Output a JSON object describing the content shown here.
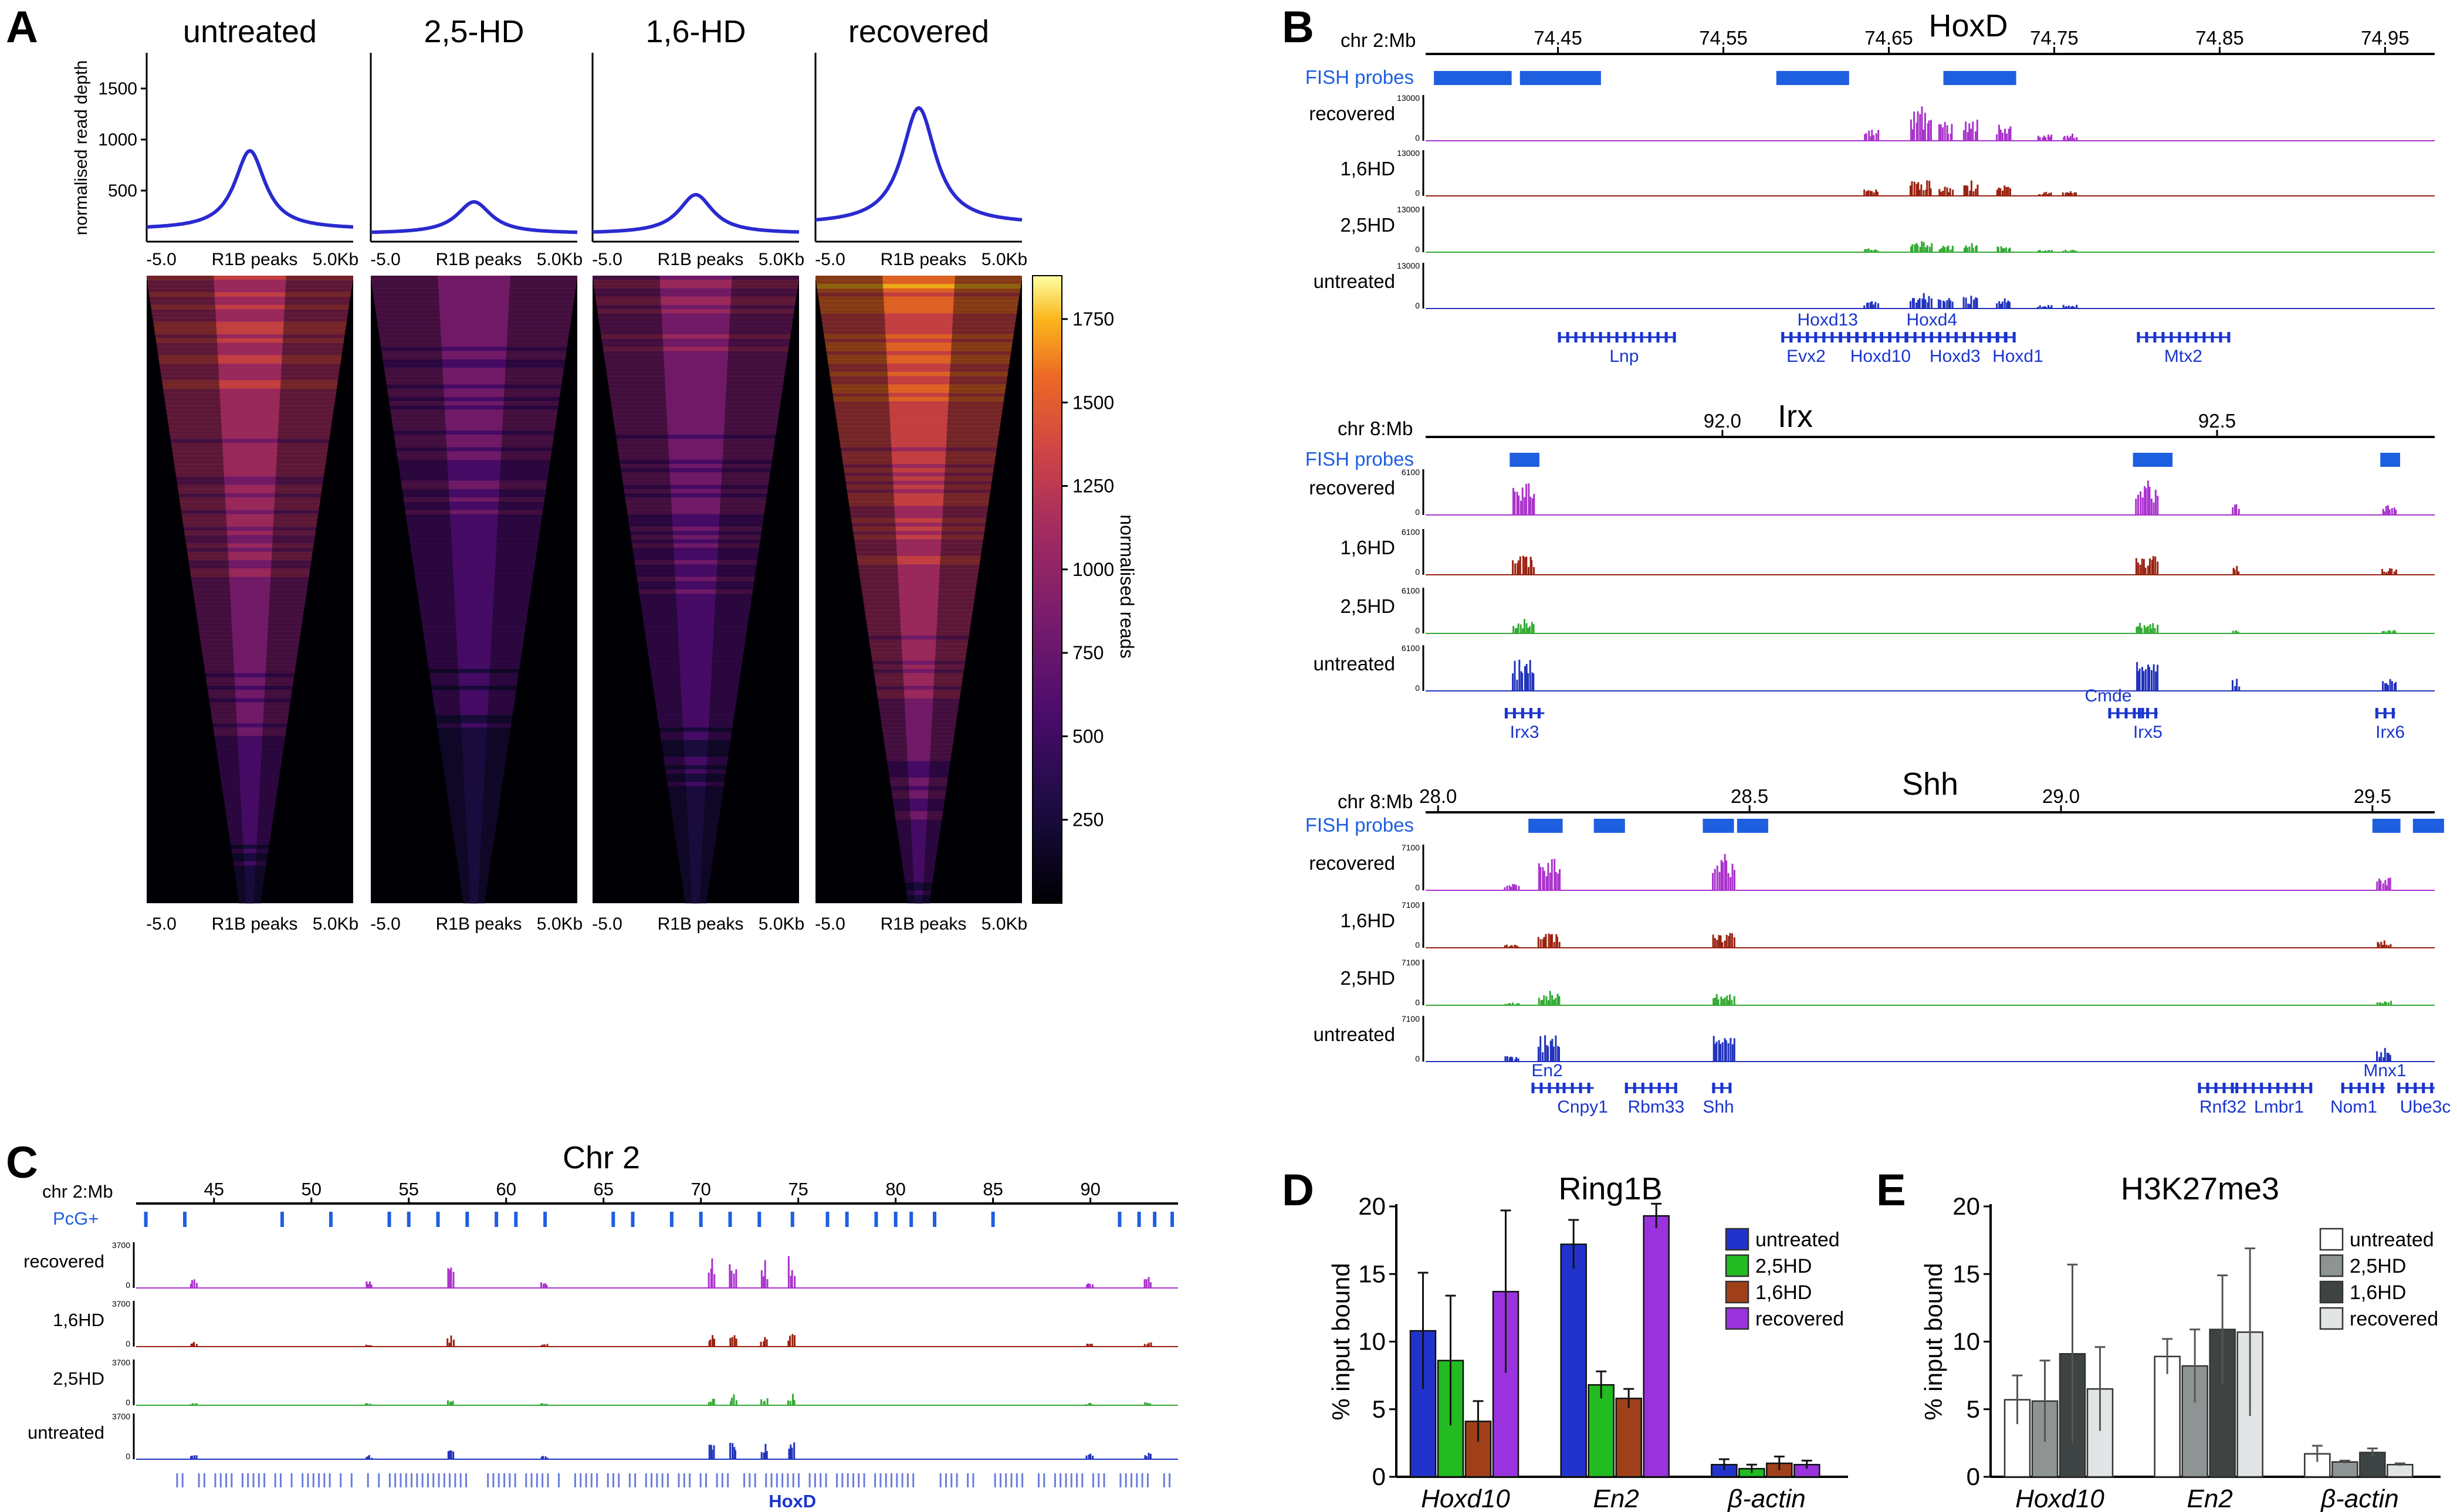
{
  "panel_letters": [
    "A",
    "B",
    "C",
    "D",
    "E"
  ],
  "colors": {
    "untreated": "#2233cc",
    "hd25": "#22bb22",
    "hd16": "#a0401a",
    "recovered": "#9a33dd",
    "untreated_track": "#2233bb",
    "hd25_track": "#33aa33",
    "hd16_track": "#992211",
    "recovered_track": "#aa33cc",
    "probe": "#1e5fe0",
    "gene": "#1a35cc",
    "profile_line": "#2a2ad0",
    "e_untreated": "#ffffff",
    "e_hd25": "#8e9494",
    "e_hd16": "#3e4444",
    "e_recovered": "#e2e5e5"
  },
  "chart_data": [
    {
      "id": "A_profiles",
      "type": "line",
      "panel": "A",
      "titles": [
        "untreated",
        "2,5-HD",
        "1,6-HD",
        "recovered"
      ],
      "ylabel": "normalised read depth",
      "yticks": [
        "500",
        "1000",
        "1500"
      ],
      "ylim": [
        0,
        1850
      ],
      "xlim": [
        -5.0,
        5.0
      ],
      "xlabels": [
        "-5.0",
        "R1B peaks",
        "5.0Kb"
      ],
      "series": [
        {
          "name": "untreated",
          "baseline": 120,
          "peak": 890,
          "width": 0.9
        },
        {
          "name": "2,5-HD",
          "baseline": 80,
          "peak": 390,
          "width": 1.0
        },
        {
          "name": "1,6-HD",
          "baseline": 80,
          "peak": 460,
          "width": 1.0
        },
        {
          "name": "recovered",
          "baseline": 170,
          "peak": 1310,
          "width": 1.0
        }
      ]
    },
    {
      "id": "A_heatmaps",
      "type": "heatmap",
      "panel": "A",
      "xlabels": [
        "-5.0",
        "R1B peaks",
        "5.0Kb"
      ],
      "colorbar_label": "normalised reads",
      "colorbar_ticks": [
        "250",
        "500",
        "750",
        "1000",
        "1250",
        "1500",
        "1750"
      ],
      "colorbar_range": [
        0,
        1880
      ],
      "intensity": [
        0.5,
        0.25,
        0.3,
        0.72
      ]
    },
    {
      "id": "B_tracks",
      "type": "area",
      "panel": "B",
      "title": "HoxD",
      "conditions": [
        "recovered",
        "1,6HD",
        "2,5HD",
        "untreated"
      ],
      "loci": [
        {
          "name": "HoxD",
          "coord": "chr 2:Mb",
          "range": [
            74.37,
            74.98
          ],
          "ticks": [
            "74.45",
            "74.55",
            "74.65",
            "74.75",
            "74.85",
            "74.95"
          ],
          "tick_pos": [
            74.45,
            74.55,
            74.65,
            74.75,
            74.85,
            74.95
          ],
          "probe_label": "FISH probes",
          "probes": [
            [
              74.375,
              74.422
            ],
            [
              74.427,
              74.476
            ],
            [
              74.582,
              74.626
            ],
            [
              74.683,
              74.727
            ]
          ],
          "ymax": "13000",
          "ymin": "0",
          "peaks": [
            [
              74.67,
              0.85,
              3
            ],
            [
              74.7,
              0.65,
              2
            ],
            [
              74.72,
              0.5,
              2
            ],
            [
              74.76,
              0.22,
              2
            ],
            [
              74.64,
              0.35,
              2
            ],
            [
              74.685,
              0.55,
              2
            ],
            [
              74.745,
              0.2,
              2
            ]
          ],
          "scale": [
            1.0,
            0.55,
            0.35,
            0.55
          ],
          "genes": [
            {
              "label": "Lnp",
              "start": 74.45,
              "end": 74.52,
              "label_pos": 74.49,
              "label_row": 1
            },
            {
              "label": "Hoxd13",
              "start": 74.59,
              "end": 74.66,
              "label_pos": 74.613,
              "label_row": 0
            },
            {
              "label": "Hoxd4",
              "start": 74.66,
              "end": 74.72,
              "label_pos": 74.676,
              "label_row": 0
            },
            {
              "label": "Evx2",
              "start": 74.585,
              "end": 74.6,
              "label_pos": 74.6,
              "label_row": 1
            },
            {
              "label": "Hoxd10",
              "start": 74.62,
              "end": 74.65,
              "label_pos": 74.645,
              "label_row": 1
            },
            {
              "label": "Hoxd3",
              "start": 74.67,
              "end": 74.7,
              "label_pos": 74.69,
              "label_row": 1
            },
            {
              "label": "Hoxd1",
              "start": 74.71,
              "end": 74.725,
              "label_pos": 74.728,
              "label_row": 1
            },
            {
              "label": "Mtx2",
              "start": 74.8,
              "end": 74.855,
              "label_pos": 74.828,
              "label_row": 1
            }
          ]
        },
        {
          "name": "Irx",
          "coord": "chr 8:Mb",
          "range": [
            91.7,
            92.72
          ],
          "ticks": [
            "92.0",
            "92.5"
          ],
          "tick_pos": [
            92.0,
            92.5
          ],
          "probe_label": "FISH probes",
          "probes": [
            [
              91.785,
              91.815
            ],
            [
              92.415,
              92.455
            ],
            [
              92.665,
              92.685
            ]
          ],
          "ymax": "6100",
          "ymin": "0",
          "peaks": [
            [
              91.8,
              0.95,
              3
            ],
            [
              92.43,
              0.9,
              3
            ],
            [
              92.52,
              0.35,
              1
            ],
            [
              92.675,
              0.3,
              2
            ]
          ],
          "scale": [
            1.0,
            0.6,
            0.35,
            0.95
          ],
          "genes": [
            {
              "label": "Irx3",
              "start": 91.78,
              "end": 91.82,
              "label_pos": 91.8,
              "label_row": 1
            },
            {
              "label": "Cmde",
              "start": 92.39,
              "end": 92.43,
              "label_pos": 92.39,
              "label_row": 0
            },
            {
              "label": "Irx5",
              "start": 92.42,
              "end": 92.44,
              "label_pos": 92.43,
              "label_row": 1
            },
            {
              "label": "Irx6",
              "start": 92.66,
              "end": 92.68,
              "label_pos": 92.675,
              "label_row": 1
            }
          ]
        },
        {
          "name": "Shh",
          "coord": "chr 8:Mb",
          "range": [
            27.98,
            29.6
          ],
          "ticks": [
            "28.0",
            "28.5",
            "29.0",
            "29.5"
          ],
          "tick_pos": [
            28.0,
            28.5,
            29.0,
            29.5
          ],
          "probe_label": "FISH probes",
          "probes": [
            [
              28.145,
              28.2
            ],
            [
              28.25,
              28.3
            ],
            [
              28.425,
              28.475
            ],
            [
              28.48,
              28.53
            ],
            [
              29.5,
              29.545
            ],
            [
              29.565,
              29.615
            ]
          ],
          "ymax": "7100",
          "ymin": "0",
          "peaks": [
            [
              28.18,
              0.95,
              3
            ],
            [
              28.46,
              0.95,
              3
            ],
            [
              29.52,
              0.4,
              2
            ],
            [
              28.12,
              0.2,
              2
            ]
          ],
          "scale": [
            1.0,
            0.45,
            0.35,
            0.8
          ],
          "genes": [
            {
              "label": "En2",
              "start": 28.15,
              "end": 28.2,
              "label_pos": 28.175,
              "label_row": 0
            },
            {
              "label": "Cnpy1",
              "start": 28.2,
              "end": 28.25,
              "label_pos": 28.232,
              "label_row": 1
            },
            {
              "label": "Rbm33",
              "start": 28.3,
              "end": 28.38,
              "label_pos": 28.35,
              "label_row": 1
            },
            {
              "label": "Shh",
              "start": 28.44,
              "end": 28.47,
              "label_pos": 28.45,
              "label_row": 1
            },
            {
              "label": "Rnf32",
              "start": 29.22,
              "end": 29.28,
              "label_pos": 29.26,
              "label_row": 1
            },
            {
              "label": "Lmbr1",
              "start": 29.28,
              "end": 29.4,
              "label_pos": 29.35,
              "label_row": 1
            },
            {
              "label": "Mnx1",
              "start": 29.5,
              "end": 29.52,
              "label_pos": 29.52,
              "label_row": 0
            },
            {
              "label": "Nom1",
              "start": 29.45,
              "end": 29.49,
              "label_pos": 29.47,
              "label_row": 1
            },
            {
              "label": "Ube3c",
              "start": 29.54,
              "end": 29.6,
              "label_pos": 29.585,
              "label_row": 1
            }
          ]
        }
      ]
    },
    {
      "id": "C_tracks",
      "type": "area",
      "panel": "C",
      "title": "Chr 2",
      "coord": "chr 2:Mb",
      "range": [
        41.0,
        94.5
      ],
      "ticks": [
        "45",
        "50",
        "55",
        "60",
        "65",
        "70",
        "75",
        "80",
        "85",
        "90"
      ],
      "tick_pos": [
        45,
        50,
        55,
        60,
        65,
        70,
        75,
        80,
        85,
        90
      ],
      "pcg_label": "PcG+",
      "pcg_positions": [
        41.5,
        43.5,
        48.5,
        51.0,
        54.0,
        55.0,
        56.5,
        58.0,
        59.5,
        60.5,
        62.0,
        65.5,
        66.5,
        68.5,
        70.0,
        71.5,
        73.0,
        74.7,
        76.5,
        77.5,
        79.0,
        80.0,
        80.8,
        82.0,
        85.0,
        91.5,
        92.5,
        93.3,
        94.2
      ],
      "conditions": [
        "recovered",
        "1,6HD",
        "2,5HD",
        "untreated"
      ],
      "ymax": "3700",
      "ymin": "0",
      "peaks": [
        [
          70.6,
          0.8
        ],
        [
          71.7,
          0.9
        ],
        [
          74.7,
          0.95
        ],
        [
          73.3,
          0.7
        ],
        [
          57.2,
          0.6
        ],
        [
          44.0,
          0.25
        ],
        [
          53.0,
          0.2
        ],
        [
          90.0,
          0.25
        ],
        [
          93.0,
          0.3
        ],
        [
          62.0,
          0.2
        ]
      ],
      "scale": [
        1.0,
        0.45,
        0.3,
        0.55
      ],
      "gene_label": "HoxD",
      "gene_label_pos": 74.7
    },
    {
      "id": "D_bar",
      "type": "bar",
      "panel": "D",
      "title": "Ring1B",
      "ylabel": "% input bound",
      "ylim": [
        0,
        20
      ],
      "yticks": [
        "0",
        "5",
        "10",
        "15",
        "20"
      ],
      "categories": [
        "Hoxd10",
        "En2",
        "β-actin"
      ],
      "series": [
        {
          "name": "untreated",
          "values": [
            10.8,
            17.2,
            0.9
          ],
          "errors": [
            4.3,
            1.8,
            0.4
          ]
        },
        {
          "name": "2,5HD",
          "values": [
            8.6,
            6.8,
            0.6
          ],
          "errors": [
            4.8,
            1.0,
            0.3
          ]
        },
        {
          "name": "1,6HD",
          "values": [
            4.1,
            5.8,
            1.0
          ],
          "errors": [
            1.5,
            0.7,
            0.5
          ]
        },
        {
          "name": "recovered",
          "values": [
            13.7,
            19.3,
            0.9
          ],
          "errors": [
            6.0,
            0.9,
            0.3
          ]
        }
      ]
    },
    {
      "id": "E_bar",
      "type": "bar",
      "panel": "E",
      "title": "H3K27me3",
      "ylabel": "% input bound",
      "ylim": [
        0,
        20
      ],
      "yticks": [
        "0",
        "5",
        "10",
        "15",
        "20"
      ],
      "categories": [
        "Hoxd10",
        "En2",
        "β-actin"
      ],
      "series": [
        {
          "name": "untreated",
          "values": [
            5.7,
            8.9,
            1.7
          ],
          "errors": [
            1.8,
            1.3,
            0.6
          ]
        },
        {
          "name": "2,5HD",
          "values": [
            5.6,
            8.2,
            1.1
          ],
          "errors": [
            3.0,
            2.7,
            0.1
          ]
        },
        {
          "name": "1,6HD",
          "values": [
            9.1,
            10.9,
            1.8
          ],
          "errors": [
            6.6,
            4.0,
            0.3
          ]
        },
        {
          "name": "recovered",
          "values": [
            6.5,
            10.7,
            0.9
          ],
          "errors": [
            3.1,
            6.2,
            0.1
          ]
        }
      ]
    }
  ]
}
